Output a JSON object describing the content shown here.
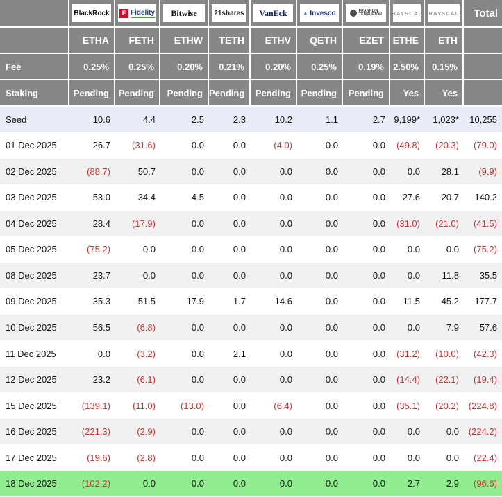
{
  "colors": {
    "header_gray": "#878787",
    "negative_red": "#c93636",
    "seed_row_blue": "#eaecf7",
    "alt_row_gray": "#f1f1f1",
    "highlight_green": "#90ee90",
    "fidelity_red": "#c41230",
    "fidelity_underline_green": "#55a546"
  },
  "table": {
    "corner": "",
    "total_label": "Total",
    "fee_label": "Fee",
    "staking_label": "Staking",
    "columns": [
      {
        "ticker": "ETHA",
        "issuer": "BlackRock",
        "logo_style": "blackrock",
        "fee": "0.25%",
        "staking": "Pending"
      },
      {
        "ticker": "FETH",
        "issuer": "Fidelity",
        "logo_style": "fidelity",
        "icon_letter": "F",
        "fee": "0.25%",
        "staking": "Pending"
      },
      {
        "ticker": "ETHW",
        "issuer": "Bitwise",
        "logo_style": "bitwise",
        "fee": "0.20%",
        "staking": "Pending"
      },
      {
        "ticker": "TETH",
        "issuer": "21shares",
        "logo_style": "t21shares",
        "fee": "0.21%",
        "staking": "Pending"
      },
      {
        "ticker": "ETHV",
        "issuer": "VanEck",
        "logo_style": "vaneck",
        "fee": "0.20%",
        "staking": "Pending"
      },
      {
        "ticker": "QETH",
        "issuer": "Invesco",
        "logo_style": "invesco",
        "icon_glyph": "▲",
        "fee": "0.25%",
        "staking": "Pending"
      },
      {
        "ticker": "EZET",
        "issuer": "Franklin Templeton",
        "logo_style": "franklin",
        "logo_lines": [
          "FRANKLIN",
          "TEMPLETON"
        ],
        "fee": "0.19%",
        "staking": "Pending"
      },
      {
        "ticker": "ETHE",
        "issuer": "Grayscale",
        "logo_style": "grayscale",
        "logo_display": "GRAYSCALE",
        "fee": "2.50%",
        "staking": "Yes"
      },
      {
        "ticker": "ETH",
        "issuer": "Grayscale",
        "logo_style": "grayscale",
        "logo_display": "GRAYSCALE",
        "fee": "0.15%",
        "staking": "Yes"
      }
    ],
    "rows": [
      {
        "label": "Seed",
        "variant": "seed",
        "values": [
          "10.6",
          "4.4",
          "2.5",
          "2.3",
          "10.2",
          "1.1",
          "2.7",
          "9,199*",
          "1,023*",
          "10,255"
        ]
      },
      {
        "label": "01 Dec 2025",
        "values": [
          "26.7",
          "(31.6)",
          "0.0",
          "0.0",
          "(4.0)",
          "0.0",
          "0.0",
          "(49.8)",
          "(20.3)",
          "(79.0)"
        ]
      },
      {
        "label": "02 Dec 2025",
        "values": [
          "(88.7)",
          "50.7",
          "0.0",
          "0.0",
          "0.0",
          "0.0",
          "0.0",
          "0.0",
          "28.1",
          "(9.9)"
        ]
      },
      {
        "label": "03 Dec 2025",
        "values": [
          "53.0",
          "34.4",
          "4.5",
          "0.0",
          "0.0",
          "0.0",
          "0.0",
          "27.6",
          "20.7",
          "140.2"
        ]
      },
      {
        "label": "04 Dec 2025",
        "values": [
          "28.4",
          "(17.9)",
          "0.0",
          "0.0",
          "0.0",
          "0.0",
          "0.0",
          "(31.0)",
          "(21.0)",
          "(41.5)"
        ]
      },
      {
        "label": "05 Dec 2025",
        "values": [
          "(75.2)",
          "0.0",
          "0.0",
          "0.0",
          "0.0",
          "0.0",
          "0.0",
          "0.0",
          "0.0",
          "(75.2)"
        ]
      },
      {
        "label": "08 Dec 2025",
        "values": [
          "23.7",
          "0.0",
          "0.0",
          "0.0",
          "0.0",
          "0.0",
          "0.0",
          "0.0",
          "11.8",
          "35.5"
        ]
      },
      {
        "label": "09 Dec 2025",
        "values": [
          "35.3",
          "51.5",
          "17.9",
          "1.7",
          "14.6",
          "0.0",
          "0.0",
          "11.5",
          "45.2",
          "177.7"
        ]
      },
      {
        "label": "10 Dec 2025",
        "values": [
          "56.5",
          "(6.8)",
          "0.0",
          "0.0",
          "0.0",
          "0.0",
          "0.0",
          "0.0",
          "7.9",
          "57.6"
        ]
      },
      {
        "label": "11 Dec 2025",
        "values": [
          "0.0",
          "(3.2)",
          "0.0",
          "2.1",
          "0.0",
          "0.0",
          "0.0",
          "(31.2)",
          "(10.0)",
          "(42.3)"
        ]
      },
      {
        "label": "12 Dec 2025",
        "values": [
          "23.2",
          "(6.1)",
          "0.0",
          "0.0",
          "0.0",
          "0.0",
          "0.0",
          "(14.4)",
          "(22.1)",
          "(19.4)"
        ]
      },
      {
        "label": "15 Dec 2025",
        "values": [
          "(139.1)",
          "(11.0)",
          "(13.0)",
          "0.0",
          "(6.4)",
          "0.0",
          "0.0",
          "(35.1)",
          "(20.2)",
          "(224.8)"
        ]
      },
      {
        "label": "16 Dec 2025",
        "values": [
          "(221.3)",
          "(2.9)",
          "0.0",
          "0.0",
          "0.0",
          "0.0",
          "0.0",
          "0.0",
          "0.0",
          "(224.2)"
        ]
      },
      {
        "label": "17 Dec 2025",
        "values": [
          "(19.6)",
          "(2.8)",
          "0.0",
          "0.0",
          "0.0",
          "0.0",
          "0.0",
          "0.0",
          "0.0",
          "(22.4)"
        ]
      },
      {
        "label": "18 Dec 2025",
        "variant": "green",
        "values": [
          "(102.2)",
          "0.0",
          "0.0",
          "0.0",
          "0.0",
          "0.0",
          "0.0",
          "2.7",
          "2.9",
          "(96.6)"
        ]
      }
    ]
  }
}
